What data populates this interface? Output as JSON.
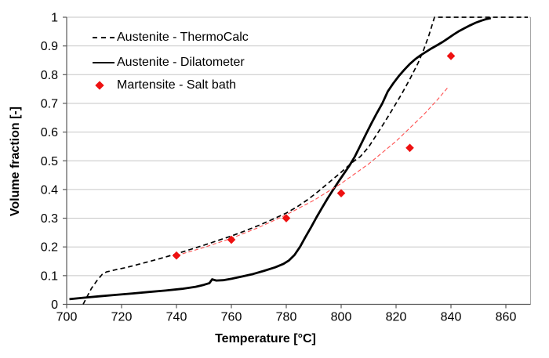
{
  "chart_data": {
    "type": "line",
    "title": "",
    "xlabel": "Temperature [°C]",
    "ylabel": "Volume fraction [-]",
    "xlim": [
      700,
      869
    ],
    "ylim": [
      0,
      1
    ],
    "x_ticks": [
      700,
      720,
      740,
      760,
      780,
      800,
      820,
      840,
      860
    ],
    "x_tick_labels": [
      "700",
      "720",
      "740",
      "760",
      "780",
      "800",
      "820",
      "840",
      "860"
    ],
    "y_ticks": [
      0,
      0.1,
      0.2,
      0.3,
      0.4,
      0.5,
      0.6,
      0.7,
      0.8,
      0.9,
      1
    ],
    "y_tick_labels": [
      "0",
      "0.1",
      "0.2",
      "0.3",
      "0.4",
      "0.5",
      "0.6",
      "0.7",
      "0.8",
      "0.9",
      "1"
    ],
    "grid": "horizontal-only",
    "legend_position": "top-left-inside",
    "colors": {
      "axis": "#595959",
      "frame": "#a6a6a6",
      "gridline": "#c6c6c6",
      "black_series": "#000000",
      "red_marker": "#ee1111",
      "red_fit_line": "#ff5050",
      "background": "#ffffff"
    },
    "series": [
      {
        "name": "Austenite - ThermoCalc",
        "type": "line",
        "color": "#000000",
        "dash": "6 4",
        "width": 1.7,
        "in_legend": true,
        "points": [
          [
            706,
            0
          ],
          [
            707.5,
            0.028
          ],
          [
            709,
            0.055
          ],
          [
            711,
            0.082
          ],
          [
            713,
            0.105
          ],
          [
            714.5,
            0.113
          ],
          [
            718,
            0.121
          ],
          [
            722,
            0.129
          ],
          [
            726,
            0.139
          ],
          [
            730,
            0.149
          ],
          [
            735,
            0.162
          ],
          [
            740,
            0.176
          ],
          [
            745,
            0.191
          ],
          [
            750,
            0.206
          ],
          [
            755,
            0.222
          ],
          [
            760,
            0.238
          ],
          [
            765,
            0.256
          ],
          [
            770,
            0.275
          ],
          [
            775,
            0.296
          ],
          [
            780,
            0.318
          ],
          [
            784,
            0.34
          ],
          [
            788,
            0.366
          ],
          [
            792,
            0.396
          ],
          [
            796,
            0.428
          ],
          [
            800,
            0.46
          ],
          [
            804,
            0.494
          ],
          [
            807,
            0.515
          ],
          [
            810,
            0.548
          ],
          [
            813,
            0.592
          ],
          [
            816,
            0.637
          ],
          [
            819,
            0.684
          ],
          [
            822,
            0.732
          ],
          [
            825,
            0.784
          ],
          [
            828,
            0.84
          ],
          [
            830,
            0.885
          ],
          [
            832,
            0.938
          ],
          [
            833.5,
            0.985
          ],
          [
            834,
            1.0
          ],
          [
            868,
            1.0
          ]
        ]
      },
      {
        "name": "Austenite - Dilatometer",
        "type": "line",
        "color": "#000000",
        "dash": "",
        "width": 2.8,
        "in_legend": true,
        "points": [
          [
            701,
            0.018
          ],
          [
            706,
            0.023
          ],
          [
            712,
            0.028
          ],
          [
            718,
            0.033
          ],
          [
            724,
            0.038
          ],
          [
            730,
            0.043
          ],
          [
            736,
            0.048
          ],
          [
            742,
            0.054
          ],
          [
            747,
            0.061
          ],
          [
            750,
            0.068
          ],
          [
            752,
            0.074
          ],
          [
            753,
            0.087
          ],
          [
            754.5,
            0.083
          ],
          [
            757,
            0.084
          ],
          [
            760,
            0.089
          ],
          [
            764,
            0.097
          ],
          [
            768,
            0.106
          ],
          [
            772,
            0.117
          ],
          [
            776,
            0.129
          ],
          [
            779,
            0.141
          ],
          [
            781,
            0.153
          ],
          [
            783,
            0.172
          ],
          [
            785,
            0.2
          ],
          [
            787,
            0.235
          ],
          [
            789,
            0.268
          ],
          [
            791,
            0.303
          ],
          [
            793,
            0.336
          ],
          [
            795,
            0.368
          ],
          [
            797,
            0.398
          ],
          [
            799,
            0.427
          ],
          [
            801,
            0.455
          ],
          [
            803,
            0.483
          ],
          [
            805,
            0.515
          ],
          [
            807,
            0.553
          ],
          [
            809,
            0.592
          ],
          [
            811,
            0.63
          ],
          [
            813,
            0.666
          ],
          [
            815,
            0.7
          ],
          [
            817,
            0.742
          ],
          [
            819,
            0.77
          ],
          [
            821,
            0.795
          ],
          [
            823,
            0.817
          ],
          [
            825,
            0.837
          ],
          [
            827,
            0.854
          ],
          [
            829,
            0.868
          ],
          [
            831,
            0.88
          ],
          [
            833,
            0.892
          ],
          [
            835,
            0.903
          ],
          [
            837,
            0.914
          ],
          [
            839,
            0.927
          ],
          [
            841,
            0.94
          ],
          [
            843,
            0.952
          ],
          [
            845,
            0.962
          ],
          [
            847,
            0.972
          ],
          [
            849,
            0.981
          ],
          [
            851,
            0.988
          ],
          [
            853,
            0.994
          ],
          [
            854.5,
            0.997
          ]
        ]
      },
      {
        "name": "",
        "type": "line",
        "color": "#ff5050",
        "dash": "5 3",
        "width": 1.1,
        "in_legend": false,
        "points": [
          [
            740,
            0.17
          ],
          [
            750,
            0.198
          ],
          [
            760,
            0.23
          ],
          [
            770,
            0.268
          ],
          [
            780,
            0.312
          ],
          [
            790,
            0.362
          ],
          [
            800,
            0.421
          ],
          [
            810,
            0.489
          ],
          [
            820,
            0.568
          ],
          [
            830,
            0.66
          ],
          [
            835,
            0.712
          ],
          [
            839,
            0.757
          ]
        ]
      },
      {
        "name": "Martensite - Salt bath",
        "type": "scatter",
        "marker": "diamond",
        "color": "#ee1111",
        "size": 4.6,
        "in_legend": true,
        "points": [
          [
            740,
            0.17
          ],
          [
            760,
            0.225
          ],
          [
            780,
            0.3
          ],
          [
            800,
            0.387
          ],
          [
            825,
            0.545
          ],
          [
            840,
            0.865
          ]
        ]
      }
    ]
  },
  "legend": {
    "rows": [
      {
        "label": "Austenite - ThermoCalc",
        "marker": "dashed-line"
      },
      {
        "label": "Austenite - Dilatometer",
        "marker": "solid-line"
      },
      {
        "label": "Martensite - Salt bath",
        "marker": "diamond"
      }
    ]
  }
}
